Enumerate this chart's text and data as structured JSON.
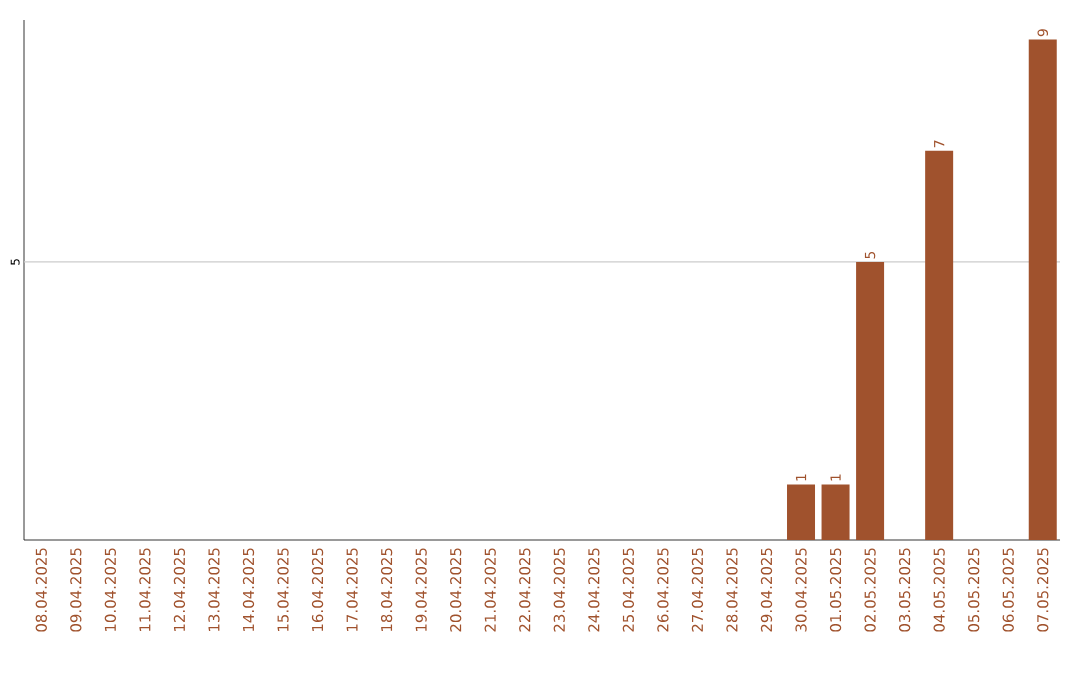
{
  "chart_data": {
    "type": "bar",
    "categories": [
      "08.04.2025",
      "09.04.2025",
      "10.04.2025",
      "11.04.2025",
      "12.04.2025",
      "13.04.2025",
      "14.04.2025",
      "15.04.2025",
      "16.04.2025",
      "17.04.2025",
      "18.04.2025",
      "19.04.2025",
      "20.04.2025",
      "21.04.2025",
      "22.04.2025",
      "23.04.2025",
      "24.04.2025",
      "25.04.2025",
      "26.04.2025",
      "27.04.2025",
      "28.04.2025",
      "29.04.2025",
      "30.04.2025",
      "01.05.2025",
      "02.05.2025",
      "03.05.2025",
      "04.05.2025",
      "05.05.2025",
      "06.05.2025",
      "07.05.2025"
    ],
    "values": [
      null,
      null,
      null,
      null,
      null,
      null,
      null,
      null,
      null,
      null,
      null,
      null,
      null,
      null,
      null,
      null,
      null,
      null,
      null,
      null,
      null,
      null,
      1,
      1,
      5,
      null,
      7,
      null,
      null,
      9
    ],
    "data_labels": true,
    "color": "#a0522d",
    "ylim": [
      0,
      9.35
    ],
    "ref_lines": [
      {
        "axis": "y",
        "value": 5,
        "label": "5",
        "color": "#cccccc"
      }
    ],
    "tick_labels": "x"
  }
}
